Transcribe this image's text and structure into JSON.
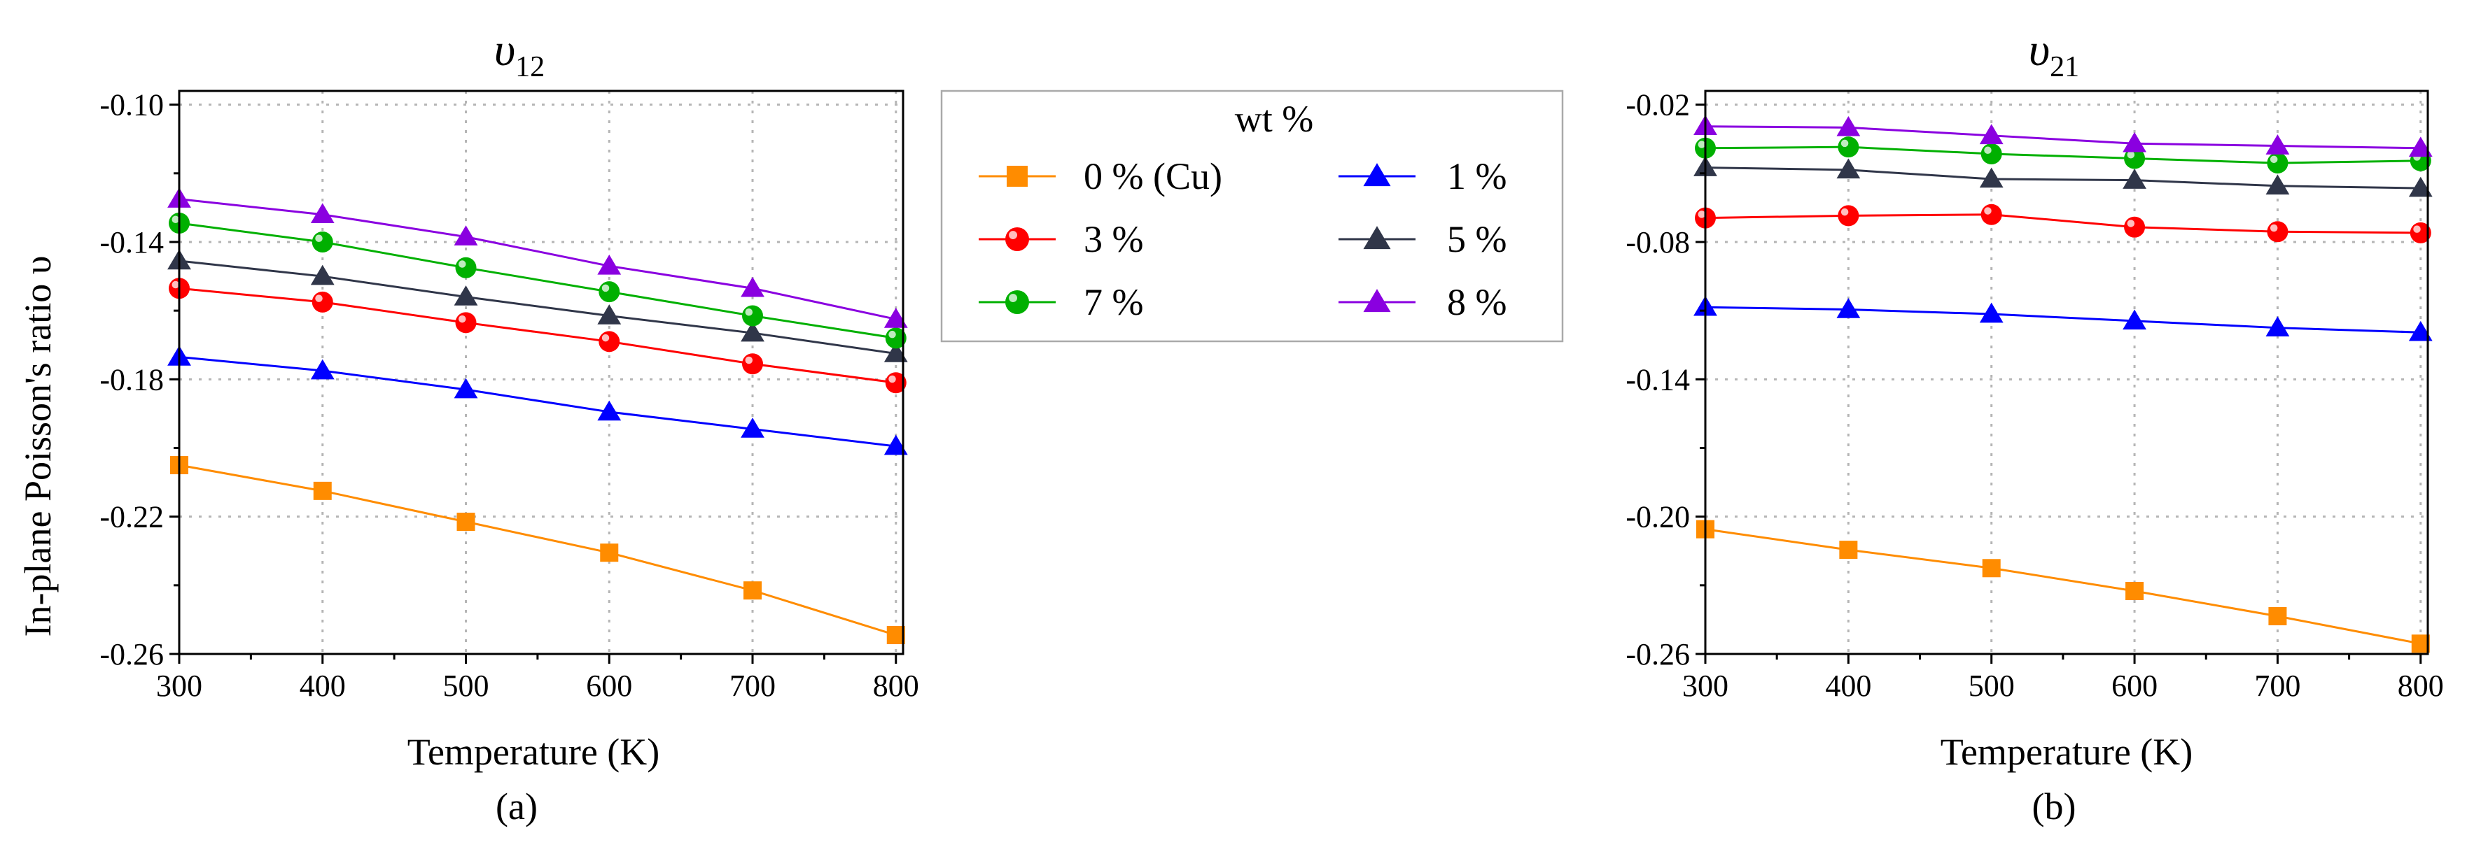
{
  "legend": {
    "title": "wt %",
    "entries": [
      {
        "label": "0 % (Cu)",
        "color": "#ff8c00",
        "marker": "square"
      },
      {
        "label": "1 %",
        "color": "#0000ff",
        "marker": "triangle"
      },
      {
        "label": "3 %",
        "color": "#ff0000",
        "marker": "circle"
      },
      {
        "label": "5 %",
        "color": "#303649",
        "marker": "triangle"
      },
      {
        "label": "7 %",
        "color": "#00b000",
        "marker": "circle"
      },
      {
        "label": "8 %",
        "color": "#8a00e0",
        "marker": "triangle"
      }
    ]
  },
  "chart_data": [
    {
      "type": "line",
      "title": "υ",
      "title_sub": "12",
      "panel_label": "(a)",
      "xlabel": "Temperature (K)",
      "ylabel": "In-plane Poisson's ratio υ",
      "xlim": [
        300,
        805
      ],
      "ylim": [
        -0.26,
        -0.096
      ],
      "xticks": [
        300,
        400,
        500,
        600,
        700,
        800
      ],
      "xtick_labels": [
        "300",
        "400",
        "500",
        "600",
        "700",
        "800"
      ],
      "yticks": [
        -0.26,
        -0.22,
        -0.18,
        -0.14,
        -0.1
      ],
      "ytick_labels": [
        "-0.26",
        "-0.22",
        "-0.18",
        "-0.14",
        "-0.10"
      ],
      "grid": true,
      "x": [
        300,
        400,
        500,
        600,
        700,
        800
      ],
      "series": [
        {
          "name": "0 % (Cu)",
          "values": [
            -0.205,
            -0.2125,
            -0.2215,
            -0.2305,
            -0.2415,
            -0.2545
          ]
        },
        {
          "name": "1 %",
          "values": [
            -0.1735,
            -0.1775,
            -0.183,
            -0.1895,
            -0.1945,
            -0.1995
          ]
        },
        {
          "name": "3 %",
          "values": [
            -0.1535,
            -0.1575,
            -0.1635,
            -0.169,
            -0.1755,
            -0.181
          ]
        },
        {
          "name": "5 %",
          "values": [
            -0.1455,
            -0.15,
            -0.156,
            -0.1615,
            -0.1665,
            -0.1725
          ]
        },
        {
          "name": "7 %",
          "values": [
            -0.1345,
            -0.14,
            -0.1475,
            -0.1545,
            -0.1615,
            -0.168
          ]
        },
        {
          "name": "8 %",
          "values": [
            -0.1275,
            -0.132,
            -0.1385,
            -0.147,
            -0.1535,
            -0.1625
          ]
        }
      ]
    },
    {
      "type": "line",
      "title": "υ",
      "title_sub": "21",
      "panel_label": "(b)",
      "xlabel": "Temperature (K)",
      "ylabel": "",
      "xlim": [
        300,
        805
      ],
      "ylim": [
        -0.26,
        -0.014
      ],
      "xticks": [
        300,
        400,
        500,
        600,
        700,
        800
      ],
      "xtick_labels": [
        "300",
        "400",
        "500",
        "600",
        "700",
        "800"
      ],
      "yticks": [
        -0.26,
        -0.2,
        -0.14,
        -0.08,
        -0.02
      ],
      "ytick_labels": [
        "-0.26",
        "-0.20",
        "-0.14",
        "-0.08",
        "-0.02"
      ],
      "grid": true,
      "x": [
        300,
        400,
        500,
        600,
        700,
        800
      ],
      "series": [
        {
          "name": "0 % (Cu)",
          "values": [
            -0.2055,
            -0.2145,
            -0.2225,
            -0.2325,
            -0.2435,
            -0.2555
          ]
        },
        {
          "name": "1 %",
          "values": [
            -0.1085,
            -0.1095,
            -0.1115,
            -0.1145,
            -0.1175,
            -0.1195
          ]
        },
        {
          "name": "3 %",
          "values": [
            -0.0695,
            -0.0685,
            -0.068,
            -0.0735,
            -0.0755,
            -0.076
          ]
        },
        {
          "name": "5 %",
          "values": [
            -0.0475,
            -0.0485,
            -0.0525,
            -0.053,
            -0.0555,
            -0.0565
          ]
        },
        {
          "name": "7 %",
          "values": [
            -0.039,
            -0.0385,
            -0.0415,
            -0.0435,
            -0.0455,
            -0.0445
          ]
        },
        {
          "name": "8 %",
          "values": [
            -0.0295,
            -0.03,
            -0.0335,
            -0.037,
            -0.038,
            -0.039
          ]
        }
      ]
    }
  ]
}
